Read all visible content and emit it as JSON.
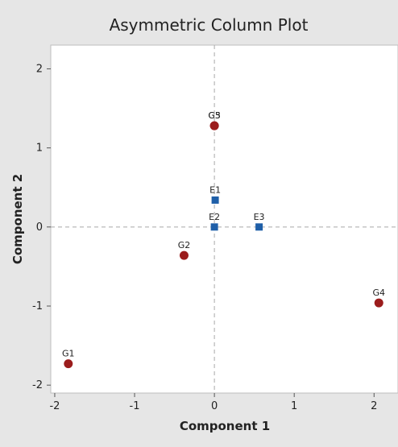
{
  "chart_data": {
    "type": "scatter",
    "title": "Asymmetric Column Plot",
    "xlabel": "Component 1",
    "ylabel": "Component 2",
    "xlim": [
      -2.05,
      2.3
    ],
    "ylim": [
      -2.1,
      2.3
    ],
    "xticks": [
      -2,
      -1,
      0,
      1,
      2
    ],
    "yticks": [
      -2,
      -1,
      0,
      1,
      2
    ],
    "reference_lines": {
      "x": 0,
      "y": 0,
      "style": "dashed"
    },
    "series": [
      {
        "marker": "circle",
        "color": "#9b1c1c",
        "points": [
          {
            "label": "G1",
            "x": -1.83,
            "y": -1.73
          },
          {
            "label": "G2",
            "x": -0.38,
            "y": -0.36
          },
          {
            "label": "G3",
            "x": 0.0,
            "y": 1.28
          },
          {
            "label": "G4",
            "x": 2.06,
            "y": -0.96
          },
          {
            "label": "G5",
            "x": 0.0,
            "y": 1.28
          }
        ]
      },
      {
        "marker": "square",
        "color": "#1f5fa8",
        "points": [
          {
            "label": "E1",
            "x": 0.01,
            "y": 0.34
          },
          {
            "label": "E2",
            "x": 0.0,
            "y": 0.0
          },
          {
            "label": "E3",
            "x": 0.56,
            "y": 0.0
          }
        ]
      }
    ]
  }
}
